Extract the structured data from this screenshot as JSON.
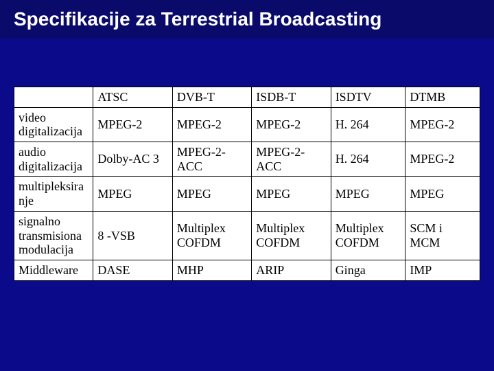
{
  "title": "Specifikacije za Terrestrial Broadcasting",
  "title_fontsize": 28,
  "title_bg": "#0a0a6a",
  "title_color": "#ffffff",
  "page_bg": "#0a0a8a",
  "table": {
    "bg": "#ffffff",
    "border_color": "#000000",
    "text_color": "#000000",
    "cell_fontsize": 18,
    "columns": [
      "",
      "ATSC",
      "DVB-T",
      "ISDB-T",
      "ISDTV",
      "DTMB"
    ],
    "rows": [
      [
        "video digitalizacija",
        "MPEG-2",
        "MPEG-2",
        "MPEG-2",
        "H. 264",
        "MPEG-2"
      ],
      [
        "audio digitalizacija",
        "Dolby-AC 3",
        "MPEG-2-ACC",
        "MPEG-2-ACC",
        "H. 264",
        "MPEG-2"
      ],
      [
        "multipleksiranje",
        "MPEG",
        "MPEG",
        "MPEG",
        "MPEG",
        "MPEG"
      ],
      [
        "signalno transmisiona modulacija",
        "8 -VSB",
        "Multiplex COFDM",
        "Multiplex COFDM",
        "Multiplex COFDM",
        "SCM i MCM"
      ],
      [
        "Middleware",
        "DASE",
        "MHP",
        "ARIP",
        "Ginga",
        "IMP"
      ]
    ],
    "col_widths_pct": [
      17,
      17,
      17,
      17,
      16,
      16
    ]
  }
}
